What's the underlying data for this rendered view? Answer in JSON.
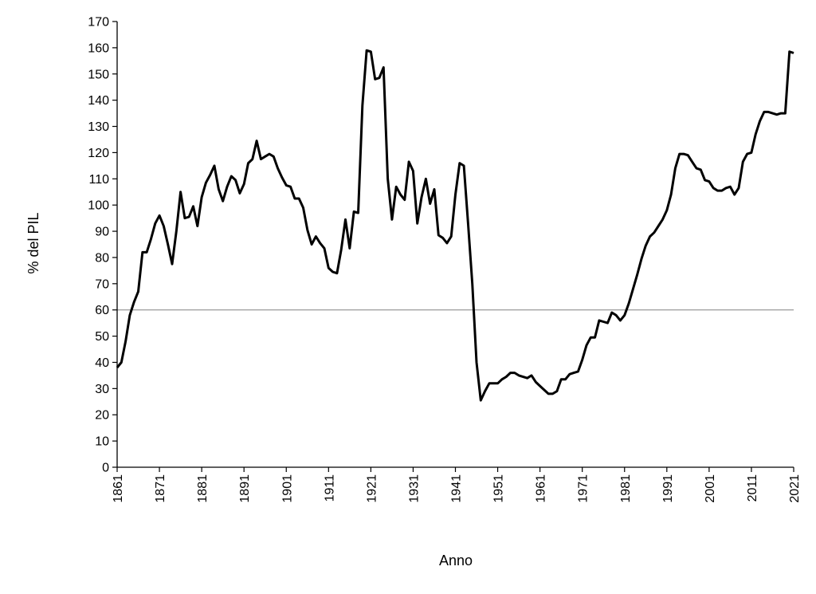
{
  "chart_data": {
    "type": "line",
    "title": "",
    "xlabel": "Anno",
    "ylabel": "% del PIL",
    "xlim": [
      1861,
      2021
    ],
    "ylim": [
      0,
      170
    ],
    "x_ticks": [
      1861,
      1871,
      1881,
      1891,
      1901,
      1911,
      1921,
      1931,
      1941,
      1951,
      1961,
      1971,
      1981,
      1991,
      2001,
      2011,
      2021
    ],
    "x_tick_labels": [
      "1861",
      "1871",
      "1881",
      "1891",
      "1901",
      "1911",
      "1921",
      "1931",
      "1941",
      "1951",
      "1961",
      "1971",
      "1981",
      "1991",
      "2001",
      "2011",
      "2021"
    ],
    "y_ticks": [
      0,
      10,
      20,
      30,
      40,
      50,
      60,
      70,
      80,
      90,
      100,
      110,
      120,
      130,
      140,
      150,
      160,
      170
    ],
    "y_tick_labels": [
      "0",
      "10",
      "20",
      "30",
      "40",
      "50",
      "60",
      "70",
      "80",
      "90",
      "100",
      "110",
      "120",
      "130",
      "140",
      "150",
      "160",
      "170"
    ],
    "grid": false,
    "reference_lines": [
      {
        "axis": "y",
        "value": 60,
        "color": "#808080"
      }
    ],
    "series": [
      {
        "color": "#000000",
        "points": [
          [
            1861,
            38
          ],
          [
            1862,
            40
          ],
          [
            1863,
            48
          ],
          [
            1864,
            58
          ],
          [
            1865,
            63
          ],
          [
            1866,
            67
          ],
          [
            1867,
            82
          ],
          [
            1868,
            82
          ],
          [
            1869,
            87
          ],
          [
            1870,
            93
          ],
          [
            1871,
            96
          ],
          [
            1872,
            92
          ],
          [
            1873,
            85
          ],
          [
            1874,
            77.5
          ],
          [
            1875,
            90
          ],
          [
            1876,
            105
          ],
          [
            1877,
            95
          ],
          [
            1878,
            95.5
          ],
          [
            1879,
            99.5
          ],
          [
            1880,
            92
          ],
          [
            1881,
            103
          ],
          [
            1882,
            108.5
          ],
          [
            1883,
            111.5
          ],
          [
            1884,
            115
          ],
          [
            1885,
            106
          ],
          [
            1886,
            101.5
          ],
          [
            1887,
            107
          ],
          [
            1888,
            111
          ],
          [
            1889,
            109.5
          ],
          [
            1890,
            104.5
          ],
          [
            1891,
            108
          ],
          [
            1892,
            116
          ],
          [
            1893,
            117.5
          ],
          [
            1894,
            124.5
          ],
          [
            1895,
            117.5
          ],
          [
            1896,
            118.5
          ],
          [
            1897,
            119.5
          ],
          [
            1898,
            118.5
          ],
          [
            1899,
            114
          ],
          [
            1900,
            110.5
          ],
          [
            1901,
            107.5
          ],
          [
            1902,
            107
          ],
          [
            1903,
            102.5
          ],
          [
            1904,
            102.5
          ],
          [
            1905,
            99
          ],
          [
            1906,
            90.5
          ],
          [
            1907,
            85
          ],
          [
            1908,
            88
          ],
          [
            1909,
            85.5
          ],
          [
            1910,
            83.5
          ],
          [
            1911,
            76
          ],
          [
            1912,
            74.5
          ],
          [
            1913,
            74
          ],
          [
            1914,
            83
          ],
          [
            1915,
            94.5
          ],
          [
            1916,
            83.5
          ],
          [
            1917,
            97.5
          ],
          [
            1918,
            97
          ],
          [
            1919,
            138
          ],
          [
            1920,
            159
          ],
          [
            1921,
            158.5
          ],
          [
            1922,
            148
          ],
          [
            1923,
            148.5
          ],
          [
            1924,
            152.5
          ],
          [
            1925,
            110
          ],
          [
            1926,
            94.5
          ],
          [
            1927,
            107
          ],
          [
            1928,
            104
          ],
          [
            1929,
            102
          ],
          [
            1930,
            116.5
          ],
          [
            1931,
            113
          ],
          [
            1932,
            93
          ],
          [
            1933,
            103
          ],
          [
            1934,
            110
          ],
          [
            1935,
            100.5
          ],
          [
            1936,
            106
          ],
          [
            1937,
            88.5
          ],
          [
            1938,
            87.5
          ],
          [
            1939,
            85.5
          ],
          [
            1940,
            88
          ],
          [
            1941,
            104
          ],
          [
            1942,
            116
          ],
          [
            1943,
            115
          ],
          [
            1944,
            93
          ],
          [
            1945,
            70
          ],
          [
            1946,
            40
          ],
          [
            1947,
            25.5
          ],
          [
            1948,
            29
          ],
          [
            1949,
            32
          ],
          [
            1950,
            32
          ],
          [
            1951,
            32
          ],
          [
            1952,
            33.5
          ],
          [
            1953,
            34.5
          ],
          [
            1954,
            36
          ],
          [
            1955,
            36
          ],
          [
            1956,
            35
          ],
          [
            1957,
            34.5
          ],
          [
            1958,
            34
          ],
          [
            1959,
            35
          ],
          [
            1960,
            32.5
          ],
          [
            1961,
            31
          ],
          [
            1962,
            29.5
          ],
          [
            1963,
            28
          ],
          [
            1964,
            28
          ],
          [
            1965,
            29
          ],
          [
            1966,
            33.5
          ],
          [
            1967,
            33.5
          ],
          [
            1968,
            35.5
          ],
          [
            1969,
            36
          ],
          [
            1970,
            36.5
          ],
          [
            1971,
            41
          ],
          [
            1972,
            46.5
          ],
          [
            1973,
            49.5
          ],
          [
            1974,
            49.5
          ],
          [
            1975,
            56
          ],
          [
            1976,
            55.5
          ],
          [
            1977,
            55
          ],
          [
            1978,
            59
          ],
          [
            1979,
            58
          ],
          [
            1980,
            56
          ],
          [
            1981,
            58
          ],
          [
            1982,
            62.5
          ],
          [
            1983,
            68
          ],
          [
            1984,
            73.5
          ],
          [
            1985,
            79.5
          ],
          [
            1986,
            84.5
          ],
          [
            1987,
            88
          ],
          [
            1988,
            89.5
          ],
          [
            1989,
            92
          ],
          [
            1990,
            94.5
          ],
          [
            1991,
            98
          ],
          [
            1992,
            104
          ],
          [
            1993,
            114
          ],
          [
            1994,
            119.5
          ],
          [
            1995,
            119.5
          ],
          [
            1996,
            119
          ],
          [
            1997,
            116.5
          ],
          [
            1998,
            114
          ],
          [
            1999,
            113.5
          ],
          [
            2000,
            109.5
          ],
          [
            2001,
            109
          ],
          [
            2002,
            106.5
          ],
          [
            2003,
            105.5
          ],
          [
            2004,
            105.5
          ],
          [
            2005,
            106.5
          ],
          [
            2006,
            107
          ],
          [
            2007,
            104
          ],
          [
            2008,
            106.5
          ],
          [
            2009,
            116.5
          ],
          [
            2010,
            119.5
          ],
          [
            2011,
            120
          ],
          [
            2012,
            127
          ],
          [
            2013,
            132
          ],
          [
            2014,
            135.5
          ],
          [
            2015,
            135.5
          ],
          [
            2016,
            135
          ],
          [
            2017,
            134.5
          ],
          [
            2018,
            135
          ],
          [
            2019,
            135
          ],
          [
            2020,
            158.5
          ],
          [
            2021,
            158
          ]
        ]
      }
    ]
  }
}
